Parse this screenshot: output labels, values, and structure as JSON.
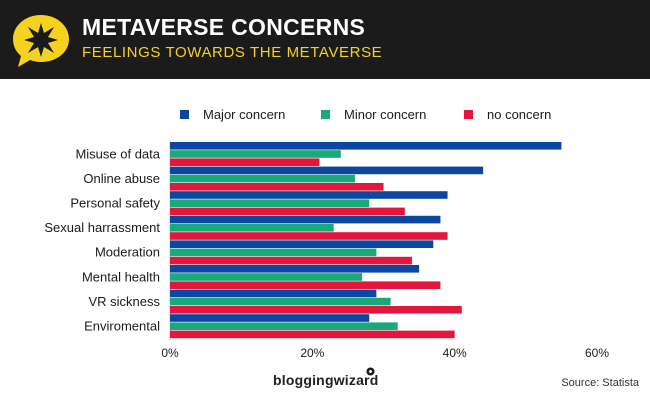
{
  "header": {
    "title": "METAVERSE CONCERNS",
    "subtitle": "FEELINGS TOWARDS THE METAVERSE"
  },
  "colors": {
    "header_bg": "#1b1b1b",
    "badge_yellow": "#f5d21f",
    "major": "#0b47a1",
    "minor": "#19a97b",
    "none": "#e3173e"
  },
  "chart_data": {
    "type": "bar",
    "orientation": "horizontal",
    "title": "Metaverse Concerns",
    "subtitle": "Feelings towards the Metaverse",
    "categories": [
      "Misuse of data",
      "Online abuse",
      "Personal safety",
      "Sexual harrassment",
      "Moderation",
      "Mental health",
      "VR sickness",
      "Enviromental"
    ],
    "series": [
      {
        "name": "Major concern",
        "color": "#0b47a1",
        "values": [
          55,
          44,
          39,
          38,
          37,
          35,
          29,
          28
        ]
      },
      {
        "name": "Minor concern",
        "color": "#19a97b",
        "values": [
          24,
          26,
          28,
          23,
          29,
          27,
          31,
          32
        ]
      },
      {
        "name": "no concern",
        "color": "#e3173e",
        "values": [
          21,
          30,
          33,
          39,
          34,
          38,
          41,
          40
        ]
      }
    ],
    "xlim": [
      0,
      60
    ],
    "xticks": [
      "0%",
      "20%",
      "40%",
      "60%"
    ],
    "xlabel": "",
    "ylabel": "",
    "legend_position": "top"
  },
  "footer": {
    "brand": "bloggingwizard",
    "source": "Source: Statista"
  }
}
